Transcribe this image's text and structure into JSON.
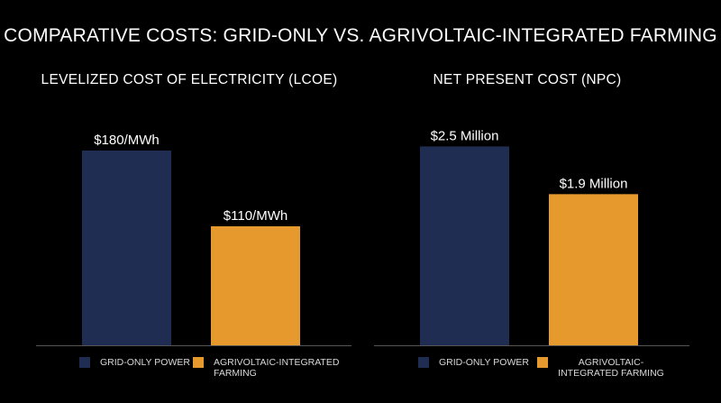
{
  "title": "COMPARATIVE COSTS: GRID-ONLY VS. AGRIVOLTAIC-INTEGRATED FARMING",
  "colors": {
    "grid": "#1f2d52",
    "agrivoltaic": "#e69a2e",
    "axis": "#555555",
    "background": "#000000",
    "text": "#ffffff"
  },
  "chart_data": [
    {
      "type": "bar",
      "title": "LEVELIZED COST OF ELECTRICITY (LCOE)",
      "categories": [
        "GRID-ONLY POWER",
        "AGRIVOLTAIC-INTEGRATED FARMING"
      ],
      "values": [
        180,
        110
      ],
      "data_labels": [
        "$180/MWh",
        "$110/MWh"
      ],
      "unit": "$/MWh",
      "ylim": [
        0,
        250
      ],
      "grid": false,
      "legend_position": "bottom",
      "legend": [
        {
          "label": "GRID-ONLY POWER",
          "color_key": "grid"
        },
        {
          "label": "AGRIVOLTAIC-INTEGRATED FARMING",
          "color_key": "agrivoltaic"
        }
      ]
    },
    {
      "type": "bar",
      "title": "NET PRESENT COST (NPC)",
      "categories": [
        "GRID-ONLY POWER",
        "AGRIVOLTAIC-INTEGRATED FARMING"
      ],
      "values": [
        2.5,
        1.9
      ],
      "data_labels": [
        "$2.5 Million",
        "$1.9 Million"
      ],
      "unit": "$ Million",
      "ylim": [
        0,
        3.4
      ],
      "grid": false,
      "legend_position": "bottom",
      "legend": [
        {
          "label": "GRID-ONLY POWER",
          "color_key": "grid"
        },
        {
          "label": "AGRIVOLTAIC-INTEGRATED FARMING",
          "color_key": "agrivoltaic"
        }
      ]
    }
  ]
}
